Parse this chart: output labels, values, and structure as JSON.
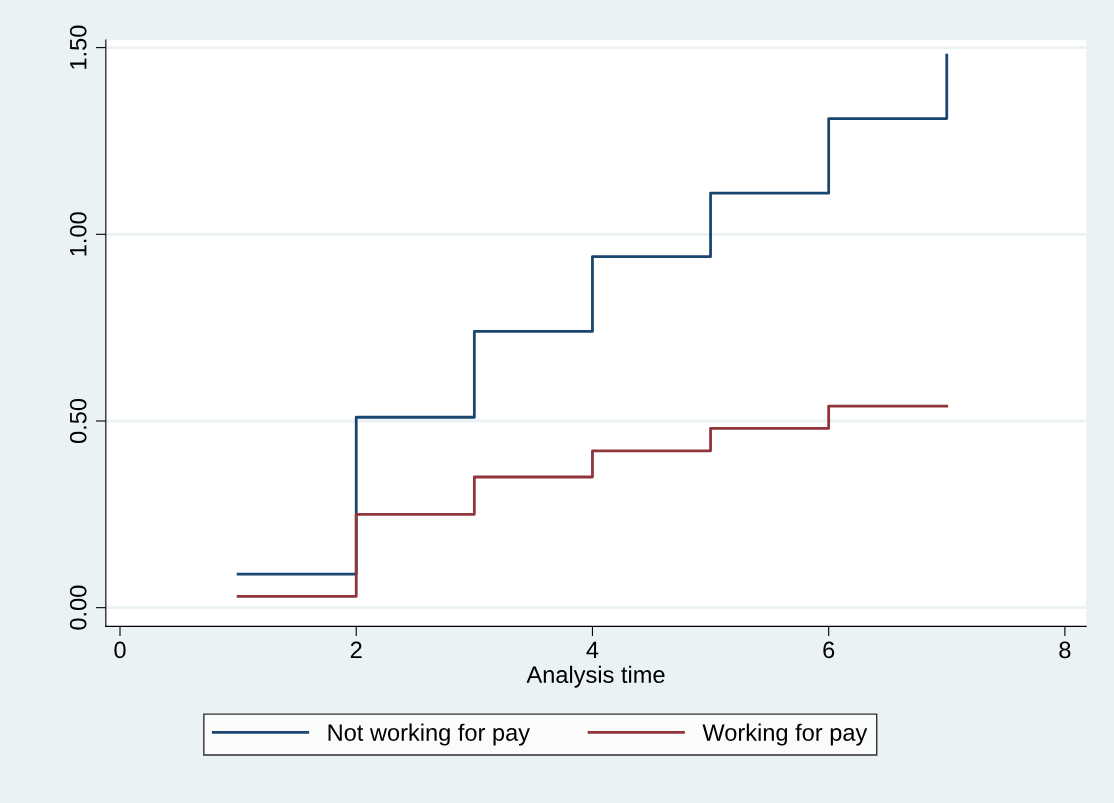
{
  "chart_data": {
    "type": "step",
    "xlabel": "Analysis time",
    "xlim": [
      -0.12,
      8.18
    ],
    "xticks": [
      0,
      2,
      4,
      6,
      8
    ],
    "ylim": [
      -0.05,
      1.52
    ],
    "yticks": [
      {
        "value": 0,
        "label": "0.00"
      },
      {
        "value": 0.5,
        "label": "0.50"
      },
      {
        "value": 1,
        "label": "1.00"
      },
      {
        "value": 1.5,
        "label": "1.50"
      }
    ],
    "grid": "y",
    "legend": "bottom",
    "x": [
      1,
      2,
      3,
      4,
      5,
      6,
      7
    ],
    "series": [
      {
        "name": "Not working for pay",
        "color": "#1a476f",
        "values": [
          0.09,
          0.51,
          0.74,
          0.94,
          1.11,
          1.31,
          1.48
        ]
      },
      {
        "name": "Working for pay",
        "color": "#90353b",
        "values": [
          0.03,
          0.25,
          0.35,
          0.42,
          0.48,
          0.54,
          0.54
        ]
      }
    ]
  }
}
